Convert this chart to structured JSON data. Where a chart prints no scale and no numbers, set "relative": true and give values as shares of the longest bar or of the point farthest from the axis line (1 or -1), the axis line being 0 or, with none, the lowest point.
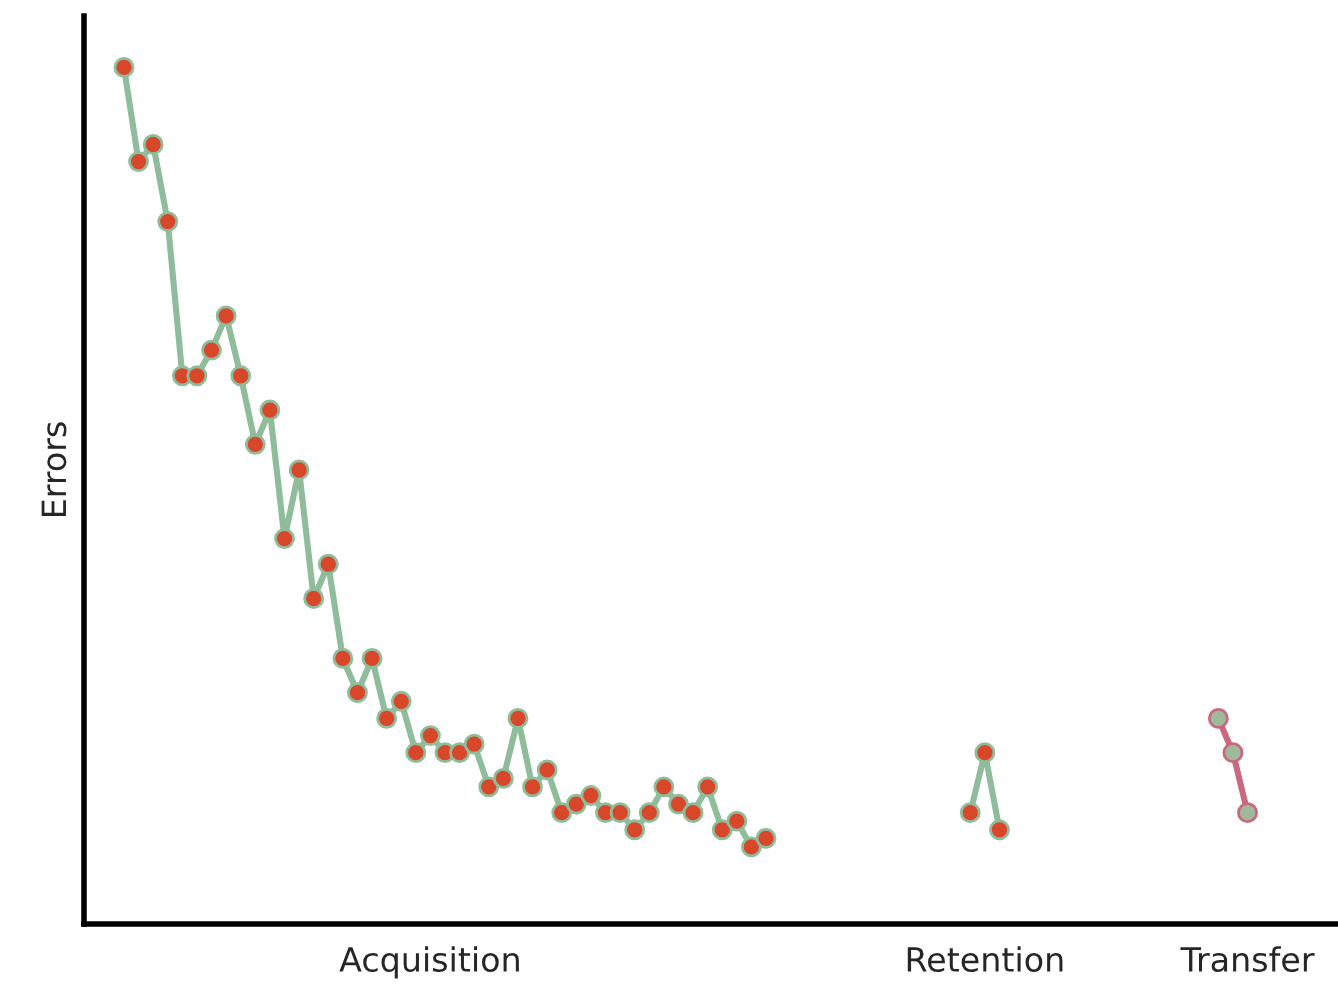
{
  "chart_data": {
    "type": "line",
    "ylabel": "Errors",
    "relative": true,
    "grid": false,
    "legend": false,
    "marker": "circle",
    "line_style": "solid",
    "tick_labels": "x",
    "categories": [
      null,
      null,
      null,
      null,
      null,
      null,
      null,
      null,
      null,
      null,
      null,
      null,
      null,
      null,
      null,
      null,
      null,
      null,
      null,
      null,
      null,
      "Acquisition",
      null,
      null,
      null,
      null,
      null,
      null,
      null,
      null,
      null,
      null,
      null,
      null,
      null,
      null,
      null,
      null,
      null,
      null,
      null,
      null,
      null,
      null,
      null,
      null,
      null,
      null,
      null,
      null,
      null,
      null,
      null,
      null,
      null,
      null,
      null,
      null,
      null,
      "Retention",
      null,
      null,
      null,
      null,
      null,
      null,
      null,
      null,
      null,
      null,
      null,
      null,
      null,
      null,
      null,
      null,
      null,
      "Transfer"
    ],
    "series": [
      {
        "color": "#8fbc9a",
        "values": [
          1.0,
          0.89,
          0.91,
          0.82,
          0.64,
          0.64,
          0.67,
          0.71,
          0.64,
          0.56,
          0.6,
          0.45,
          0.53,
          0.38,
          0.42,
          0.31,
          0.27,
          0.31,
          0.24,
          0.26,
          0.2,
          0.22,
          0.2,
          0.2,
          0.21,
          0.16,
          0.17,
          0.24,
          0.16,
          0.18,
          0.13,
          0.14,
          0.15,
          0.13,
          0.13,
          0.11,
          0.13,
          0.16,
          0.14,
          0.13,
          0.16,
          0.11,
          0.12,
          0.09,
          0.1,
          null,
          null,
          null,
          null,
          null,
          null,
          null,
          null,
          null,
          null,
          null,
          null,
          null,
          null,
          null,
          null,
          null,
          null,
          null,
          null,
          null,
          null,
          null,
          null,
          null,
          null,
          null,
          null,
          null,
          null,
          null,
          null,
          null
        ]
      },
      {
        "color": "#8fbc9a",
        "values": [
          null,
          null,
          null,
          null,
          null,
          null,
          null,
          null,
          null,
          null,
          null,
          null,
          null,
          null,
          null,
          null,
          null,
          null,
          null,
          null,
          null,
          null,
          null,
          null,
          null,
          null,
          null,
          null,
          null,
          null,
          null,
          null,
          null,
          null,
          null,
          null,
          null,
          null,
          null,
          null,
          null,
          null,
          null,
          null,
          null,
          null,
          null,
          null,
          null,
          null,
          null,
          null,
          null,
          null,
          null,
          null,
          null,
          null,
          0.13,
          0.2,
          0.11,
          null,
          null,
          null,
          null,
          null,
          null,
          null,
          null,
          null,
          null,
          null,
          null,
          null,
          null,
          null,
          null,
          null
        ]
      },
      {
        "color": "#c9697f",
        "values": [
          null,
          null,
          null,
          null,
          null,
          null,
          null,
          null,
          null,
          null,
          null,
          null,
          null,
          null,
          null,
          null,
          null,
          null,
          null,
          null,
          null,
          null,
          null,
          null,
          null,
          null,
          null,
          null,
          null,
          null,
          null,
          null,
          null,
          null,
          null,
          null,
          null,
          null,
          null,
          null,
          null,
          null,
          null,
          null,
          null,
          null,
          null,
          null,
          null,
          null,
          null,
          null,
          null,
          null,
          null,
          null,
          null,
          null,
          null,
          null,
          null,
          null,
          null,
          null,
          null,
          null,
          null,
          null,
          null,
          null,
          null,
          null,
          null,
          null,
          null,
          0.24,
          0.2,
          0.13
        ]
      }
    ]
  }
}
